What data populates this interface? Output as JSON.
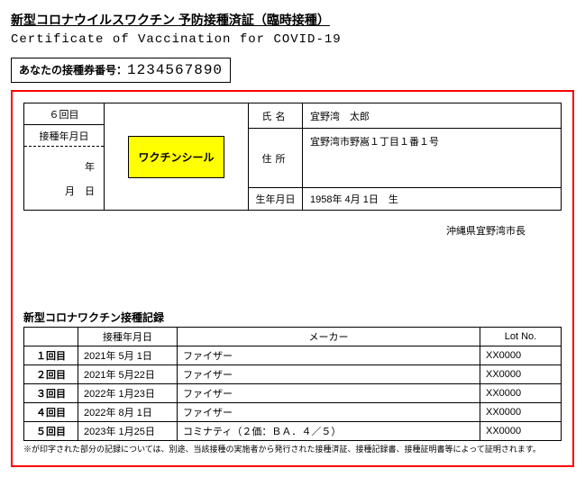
{
  "header": {
    "title_jp": "新型コロナウイルスワクチン 予防接種済証（臨時接種）",
    "title_en": "Certificate of Vaccination for COVID-19",
    "ticket_label": "あなたの接種券番号：",
    "ticket_number": "1234567890"
  },
  "left": {
    "dose_label": "６回目",
    "date_header": "接種年月日",
    "year_label": "年",
    "month_day_label": "月　日"
  },
  "sticker_label": "ワクチンシール",
  "info": {
    "name_label": "氏名",
    "name_value": "宜野湾　太郎",
    "address_label": "住所",
    "address_value": "宜野湾市野嵩１丁目１番１号",
    "dob_label": "生年月日",
    "dob_value": "1958年 4月 1日　生"
  },
  "mayor_line": "沖縄県宜野湾市長",
  "history": {
    "title": "新型コロナワクチン接種記録",
    "header_dose": "",
    "header_date": "接種年月日",
    "header_maker": "メーカー",
    "header_lot": "Lot No.",
    "rows": [
      {
        "dose": "１回目",
        "date": "2021年 5月 1日",
        "maker": "ファイザー",
        "lot": "XX0000"
      },
      {
        "dose": "２回目",
        "date": "2021年 5月22日",
        "maker": "ファイザー",
        "lot": "XX0000"
      },
      {
        "dose": "３回目",
        "date": "2022年 1月23日",
        "maker": "ファイザー",
        "lot": "XX0000"
      },
      {
        "dose": "４回目",
        "date": "2022年 8月 1日",
        "maker": "ファイザー",
        "lot": "XX0000"
      },
      {
        "dose": "５回目",
        "date": "2023年 1月25日",
        "maker": "コミナティ（２価：ＢＡ．４／５）",
        "lot": "XX0000"
      }
    ],
    "footnote": "※が印字された部分の記録については、別途、当該接種の実施者から発行された接種済証、接種記録書、接種証明書等によって証明されます。"
  },
  "colors": {
    "frame": "#ff0000",
    "sticker_bg": "#ffff00",
    "text": "#000000",
    "bg": "#ffffff"
  }
}
